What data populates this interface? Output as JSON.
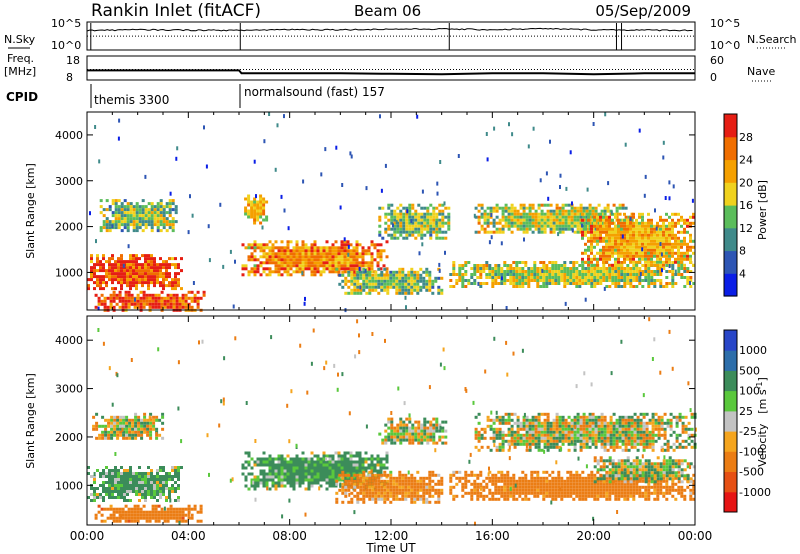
{
  "header": {
    "station": "Rankin Inlet (fitACF)",
    "beam": "Beam 06",
    "date": "05/Sep/2009"
  },
  "summary_panel": {
    "nsky_label": "N.Sky",
    "nsearch_label": "N.Search",
    "left_ticks": [
      "10^5",
      "10^0"
    ],
    "right_ticks": [
      "10^5",
      "10^0"
    ],
    "freq_label_1": "Freq.",
    "freq_label_2": "[MHz]",
    "freq_ticks": [
      "18",
      "8"
    ],
    "nave_label": "Nave",
    "nave_ticks": [
      "60",
      "0"
    ],
    "cpid_label": "CPID",
    "cpid_segments": [
      {
        "start_hour": 0,
        "label": "themis 3300"
      },
      {
        "start_hour": 6,
        "label": "normalsound (fast) 157"
      }
    ]
  },
  "time_axis": {
    "label": "Time UT",
    "ticks": [
      "00:00",
      "04:00",
      "08:00",
      "12:00",
      "16:00",
      "20:00",
      "00:00"
    ],
    "range_hours": [
      0,
      24
    ]
  },
  "range_axis": {
    "label": "Slant Range [km]",
    "ticks": [
      "1000",
      "2000",
      "3000",
      "4000"
    ],
    "range_km": [
      180,
      4500
    ]
  },
  "colorbars": {
    "power": {
      "label": "Power [dB]",
      "ticks": [
        "4",
        "8",
        "12",
        "16",
        "20",
        "24",
        "28"
      ],
      "colors": [
        "#0a1ee6",
        "#2d55b4",
        "#3f8a8a",
        "#5bbd5b",
        "#f0d21e",
        "#f5a000",
        "#f06e00",
        "#e61e14"
      ]
    },
    "velocity": {
      "label": "Velocity",
      "unit": "[m s",
      "unit_exp": "-1",
      "unit_close": "]",
      "ticks": [
        "1000",
        "500",
        "100",
        "25",
        "-25",
        "-100",
        "-500",
        "-1000"
      ],
      "colors": [
        "#2846c8",
        "#2d6eaa",
        "#3c8c5a",
        "#5ac83c",
        "#c3c3c3",
        "#f5a51e",
        "#eb7d14",
        "#e65014",
        "#e61414"
      ]
    }
  },
  "chart_data": [
    {
      "type": "line",
      "title": "Rankin Inlet (fitACF)",
      "series": [
        {
          "name": "N.Sky",
          "x": [
            0,
            2,
            4,
            6,
            8,
            10,
            12,
            14,
            16,
            18,
            20,
            22,
            24
          ],
          "y": [
            3000,
            4000,
            3500,
            3000,
            4500,
            4000,
            5000,
            5500,
            4000,
            6000,
            4000,
            3500,
            3000
          ]
        },
        {
          "name": "Freq.",
          "x": [
            0,
            6,
            6.1,
            8,
            10,
            12,
            14,
            16,
            18,
            20,
            22,
            24
          ],
          "y": [
            12,
            12,
            10.8,
            10.8,
            10.8,
            10.6,
            10.4,
            10.8,
            10.8,
            10.4,
            10.8,
            10.8
          ]
        }
      ]
    },
    {
      "type": "heatmap",
      "title": "Power [dB]",
      "xlabel": "Time UT",
      "ylabel": "Slant Range [km]",
      "xlim": [
        0,
        24
      ],
      "ylim": [
        180,
        4500
      ],
      "zlim": [
        0,
        30
      ],
      "regions": [
        {
          "t": [
            0.3,
            4.6
          ],
          "r": [
            200,
            600
          ],
          "power": 26
        },
        {
          "t": [
            0.0,
            3.7
          ],
          "r": [
            650,
            1400
          ],
          "power": 26
        },
        {
          "t": [
            0.5,
            3.5
          ],
          "r": [
            1900,
            2600
          ],
          "power": 14
        },
        {
          "t": [
            6.1,
            11.9
          ],
          "r": [
            950,
            1700
          ],
          "power": 22
        },
        {
          "t": [
            6.2,
            7.1
          ],
          "r": [
            2100,
            2700
          ],
          "power": 18
        },
        {
          "t": [
            9.8,
            14.0
          ],
          "r": [
            550,
            1100
          ],
          "power": 14
        },
        {
          "t": [
            11.5,
            14.3
          ],
          "r": [
            1750,
            2500
          ],
          "power": 14
        },
        {
          "t": [
            14.3,
            24.0
          ],
          "r": [
            700,
            1250
          ],
          "power": 16
        },
        {
          "t": [
            15.3,
            21.5
          ],
          "r": [
            1850,
            2500
          ],
          "power": 16
        },
        {
          "t": [
            19.5,
            24.0
          ],
          "r": [
            1150,
            2300
          ],
          "power": 20
        }
      ]
    },
    {
      "type": "heatmap",
      "title": "Velocity [m s-1]",
      "xlabel": "Time UT",
      "ylabel": "Slant Range [km]",
      "xlim": [
        0,
        24
      ],
      "ylim": [
        180,
        4500
      ],
      "zlim": [
        -1000,
        1000
      ],
      "regions": [
        {
          "t": [
            0.3,
            4.5
          ],
          "r": [
            250,
            600
          ],
          "velocity": -300
        },
        {
          "t": [
            0.0,
            3.7
          ],
          "r": [
            700,
            1400
          ],
          "velocity": 150
        },
        {
          "t": [
            0.2,
            3.0
          ],
          "r": [
            1950,
            2500
          ],
          "velocity": 0
        },
        {
          "t": [
            6.1,
            11.8
          ],
          "r": [
            950,
            1700
          ],
          "velocity": 180
        },
        {
          "t": [
            9.8,
            14.0
          ],
          "r": [
            650,
            1300
          ],
          "velocity": -200
        },
        {
          "t": [
            11.5,
            14.2
          ],
          "r": [
            1850,
            2400
          ],
          "velocity": 0
        },
        {
          "t": [
            14.3,
            24.0
          ],
          "r": [
            700,
            1300
          ],
          "velocity": -250
        },
        {
          "t": [
            15.3,
            24.0
          ],
          "r": [
            1750,
            2500
          ],
          "velocity": 0
        },
        {
          "t": [
            20.0,
            24.0
          ],
          "r": [
            1100,
            1600
          ],
          "velocity": 60
        }
      ]
    }
  ]
}
